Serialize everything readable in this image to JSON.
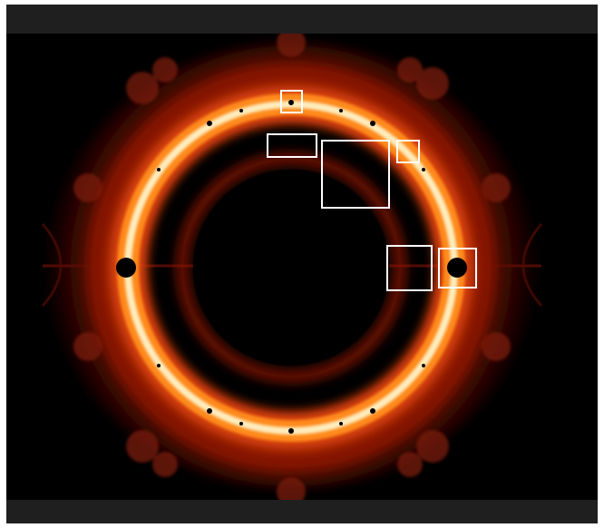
{
  "colors": {
    "background": "#000000",
    "bar": "#1f1f1f",
    "ring_core": "#fff2c6",
    "ring_mid": "#ff8a1f",
    "ring_outer": "#d9420d",
    "ring_edge": "#8a1305",
    "highlight": "#ffffff"
  },
  "viewer": {
    "has_top_bar": true,
    "has_bottom_bar": true
  },
  "image": {
    "subject": "fractal-ring",
    "highlight_boxes_count": 6
  }
}
